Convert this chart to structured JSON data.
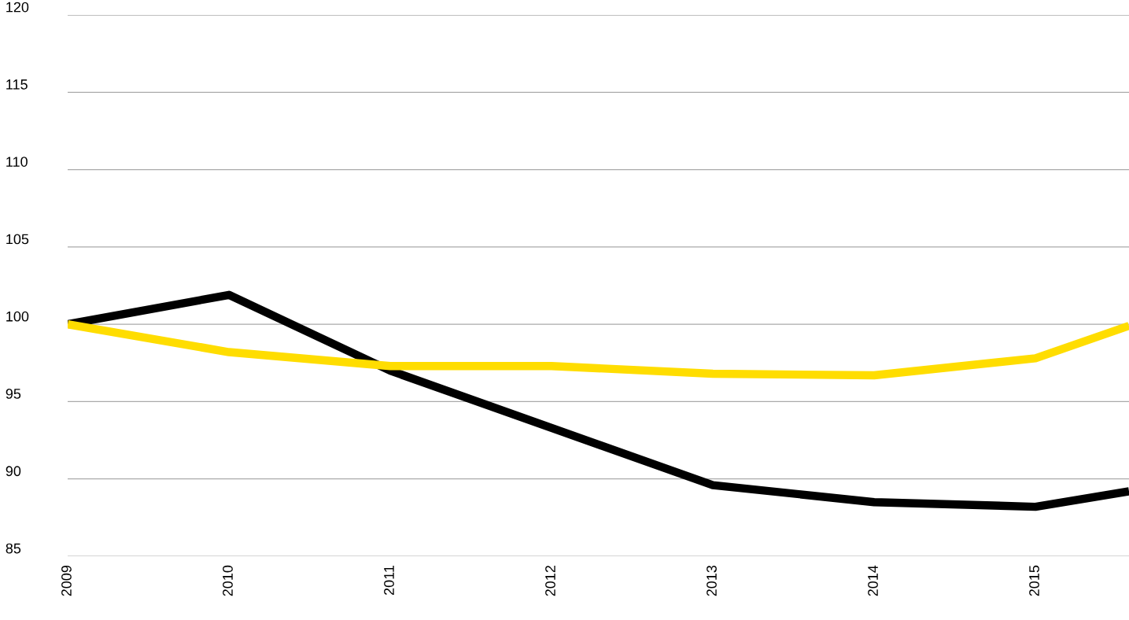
{
  "chart_data": {
    "type": "line",
    "x": [
      2009,
      2010,
      2011,
      2012,
      2013,
      2014,
      2015,
      2015.58
    ],
    "series": [
      {
        "color": "#000000",
        "values": [
          100,
          101.9,
          97.0,
          93.3,
          89.6,
          88.5,
          88.2,
          89.2
        ]
      },
      {
        "color": "#ffdd00",
        "values": [
          100,
          98.2,
          97.3,
          97.3,
          96.8,
          96.7,
          97.8,
          99.9
        ]
      }
    ],
    "xlim": [
      2009,
      2015.58
    ],
    "xticks": [
      2009,
      2010,
      2011,
      2012,
      2013,
      2014,
      2015
    ],
    "ylim": [
      85,
      120
    ],
    "yticks": [
      85,
      90,
      95,
      100,
      105,
      110,
      115,
      120
    ],
    "grid": "y",
    "marker": "none",
    "line_style": "solid"
  }
}
